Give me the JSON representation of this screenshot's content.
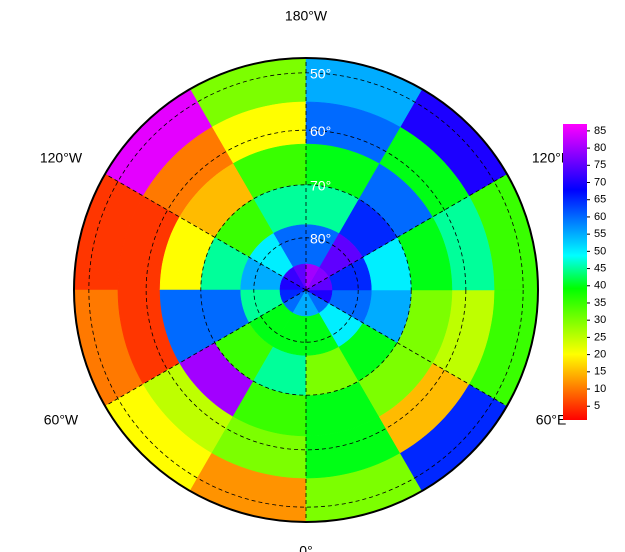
{
  "chart_data": {
    "type": "polar-heatmap",
    "projection": "north-polar-stereographic",
    "lat_limit": 47.5,
    "grid": {
      "lat_edges": [
        47.5,
        55,
        62.5,
        70,
        77.5,
        85,
        90
      ],
      "lon_edges": [
        -180,
        -150,
        -120,
        -90,
        -60,
        -30,
        0,
        30,
        60,
        90,
        120,
        150,
        180
      ],
      "values": [
        [
          30,
          85,
          5,
          10,
          20,
          12,
          30,
          65,
          35,
          35,
          70,
          55
        ],
        [
          20,
          10,
          5,
          5,
          25,
          30,
          40,
          15,
          25,
          45,
          40,
          60
        ],
        [
          35,
          15,
          20,
          60,
          80,
          35,
          40,
          30,
          30,
          40,
          60,
          40
        ],
        [
          45,
          35,
          45,
          60,
          35,
          45,
          30,
          40,
          55,
          50,
          65,
          45
        ],
        [
          60,
          50,
          55,
          45,
          40,
          40,
          40,
          50,
          60,
          65,
          75,
          60
        ],
        [
          75,
          72,
          70,
          65,
          60,
          55,
          55,
          60,
          70,
          75,
          78,
          80
        ]
      ]
    },
    "lon_ticks": [
      {
        "value": 180,
        "label": "180°W"
      },
      {
        "value": 120,
        "label": "120°E"
      },
      {
        "value": 60,
        "label": "60°E"
      },
      {
        "value": 0,
        "label": "0°"
      },
      {
        "value": -60,
        "label": "60°W"
      },
      {
        "value": -120,
        "label": "120°W"
      }
    ],
    "lat_ticks": [
      {
        "value": 50,
        "label": "50°"
      },
      {
        "value": 60,
        "label": "60°"
      },
      {
        "value": 70,
        "label": "70°"
      },
      {
        "value": 80,
        "label": "80°"
      }
    ],
    "clim": [
      1,
      87
    ],
    "colorbar_ticks": [
      5,
      10,
      15,
      20,
      25,
      30,
      35,
      40,
      45,
      50,
      55,
      60,
      65,
      70,
      75,
      80,
      85
    ],
    "colormap": [
      "#ff0000",
      "#ff8000",
      "#ffff00",
      "#80ff00",
      "#00ff00",
      "#00ffff",
      "#0080ff",
      "#0000ff",
      "#8000ff",
      "#ff00ff"
    ]
  }
}
